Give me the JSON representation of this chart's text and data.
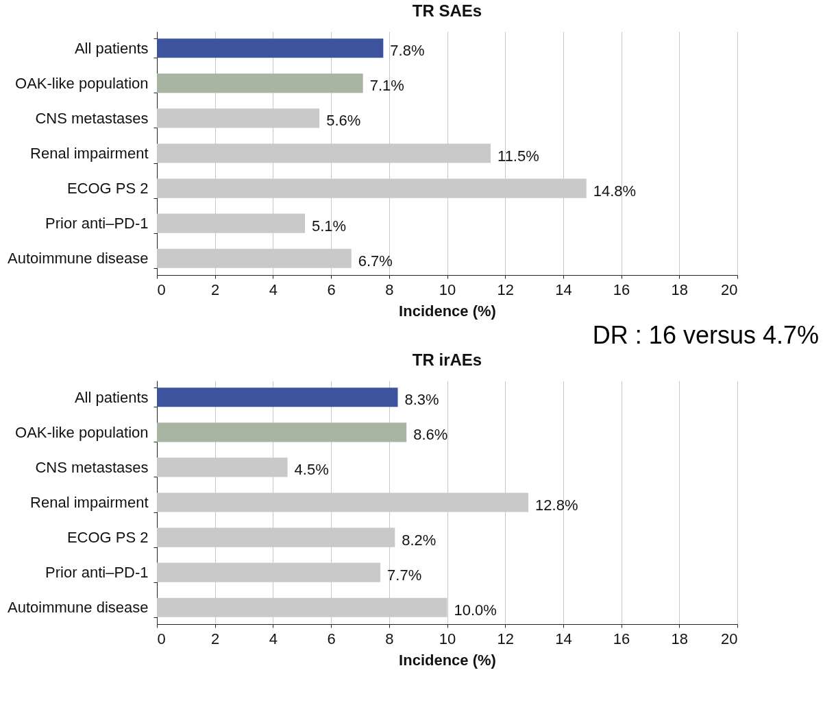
{
  "chart_data": [
    {
      "type": "bar",
      "orientation": "horizontal",
      "title": "TR SAEs",
      "xlabel": "Incidence (%)",
      "categories": [
        "All patients",
        "OAK-like population",
        "CNS metastases",
        "Renal impairment",
        "ECOG PS 2",
        "Prior anti–PD-1",
        "Autoimmune disease"
      ],
      "values": [
        7.8,
        7.1,
        5.6,
        11.5,
        14.8,
        5.1,
        6.7
      ],
      "value_labels": [
        "7.8%",
        "7.1%",
        "5.6%",
        "11.5%",
        "14.8%",
        "5.1%",
        "6.7%"
      ],
      "colors": [
        "#3d539e",
        "#a8b5a2",
        "#c9c9c9",
        "#c9c9c9",
        "#c9c9c9",
        "#c9c9c9",
        "#c9c9c9"
      ],
      "xlim": [
        0,
        20
      ],
      "xticks": [
        0,
        2,
        4,
        6,
        8,
        10,
        12,
        14,
        16,
        18,
        20
      ],
      "grid": "x",
      "annotations": [
        "DR : 16 versus 4.7%"
      ]
    },
    {
      "type": "bar",
      "orientation": "horizontal",
      "title": "TR irAEs",
      "xlabel": "Incidence (%)",
      "categories": [
        "All patients",
        "OAK-like population",
        "CNS metastases",
        "Renal impairment",
        "ECOG PS 2",
        "Prior anti–PD-1",
        "Autoimmune disease"
      ],
      "values": [
        8.3,
        8.6,
        4.5,
        12.8,
        8.2,
        7.7,
        10.0
      ],
      "value_labels": [
        "8.3%",
        "8.6%",
        "4.5%",
        "12.8%",
        "8.2%",
        "7.7%",
        "10.0%"
      ],
      "colors": [
        "#3d539e",
        "#a8b5a2",
        "#c9c9c9",
        "#c9c9c9",
        "#c9c9c9",
        "#c9c9c9",
        "#c9c9c9"
      ],
      "xlim": [
        0,
        20
      ],
      "xticks": [
        0,
        2,
        4,
        6,
        8,
        10,
        12,
        14,
        16,
        18,
        20
      ],
      "grid": "x"
    }
  ]
}
